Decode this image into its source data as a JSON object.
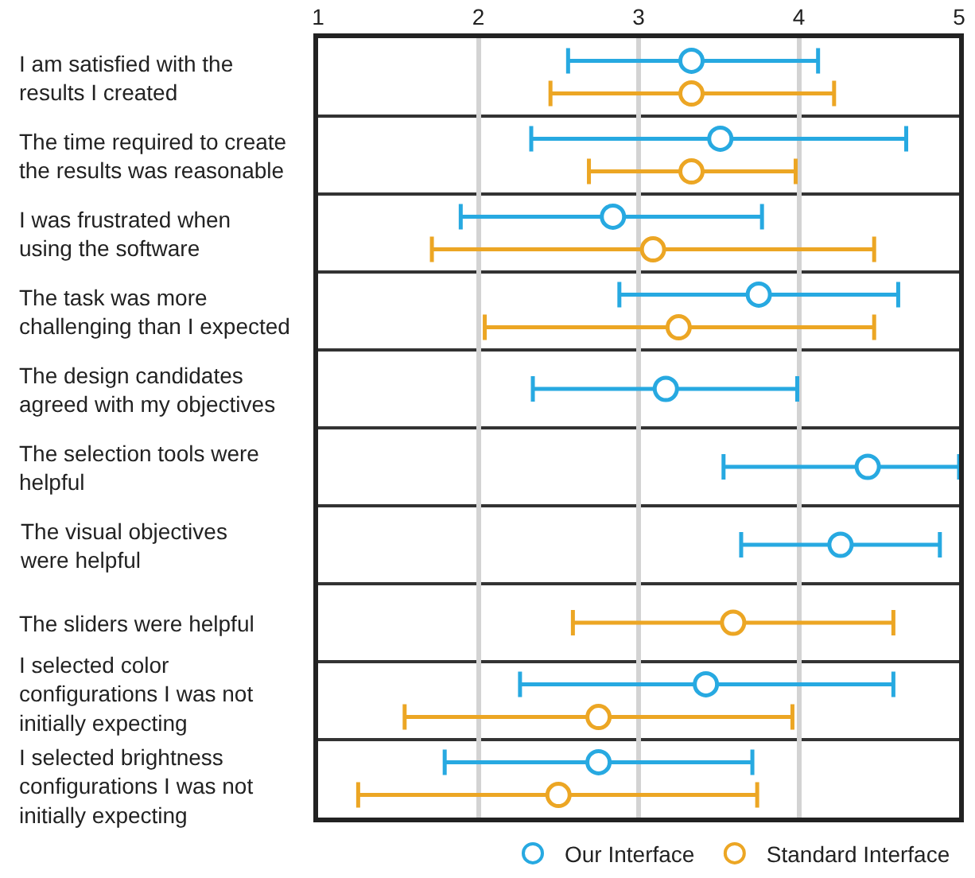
{
  "chart_data": {
    "type": "scatter",
    "orientation": "horizontal",
    "categories": [
      "I am satisfied with the\nresults I created",
      "The time required to create\nthe results was reasonable",
      "I was frustrated when\nusing the software",
      "The task was more\nchallenging than I expected",
      "The design candidates\nagreed with my objectives",
      "The selection tools were\nhelpful",
      "The visual objectives\nwere helpful",
      "The sliders were helpful",
      "I selected color\nconfigurations I was not\ninitially expecting",
      "I selected brightness\nconfigurations I was not\ninitially expecting"
    ],
    "series": [
      {
        "name": "Our Interface",
        "color": "#27a9e1",
        "values": [
          3.33,
          3.51,
          2.84,
          3.75,
          3.17,
          4.43,
          4.26,
          null,
          3.42,
          2.75
        ],
        "errors": [
          [
            2.56,
            4.12
          ],
          [
            2.33,
            4.67
          ],
          [
            1.89,
            3.77
          ],
          [
            2.88,
            4.62
          ],
          [
            2.34,
            3.99
          ],
          [
            3.53,
            5
          ],
          [
            3.64,
            4.88
          ],
          null,
          [
            2.26,
            4.59
          ],
          [
            1.79,
            3.71
          ]
        ]
      },
      {
        "name": "Standard Interface",
        "color": "#eca624",
        "values": [
          3.33,
          3.33,
          3.09,
          3.25,
          null,
          null,
          null,
          3.59,
          2.75,
          2.5
        ],
        "errors": [
          [
            2.45,
            4.22
          ],
          [
            2.69,
            3.98
          ],
          [
            1.71,
            4.47
          ],
          [
            2.04,
            4.47
          ],
          null,
          null,
          null,
          [
            2.59,
            4.59
          ],
          [
            1.54,
            3.96
          ],
          [
            1.25,
            3.74
          ]
        ]
      }
    ],
    "xlim": [
      1,
      5
    ],
    "xticks": [
      1,
      2,
      3,
      4,
      5
    ],
    "marker": "circle",
    "grid": true,
    "legend": "bottom"
  }
}
